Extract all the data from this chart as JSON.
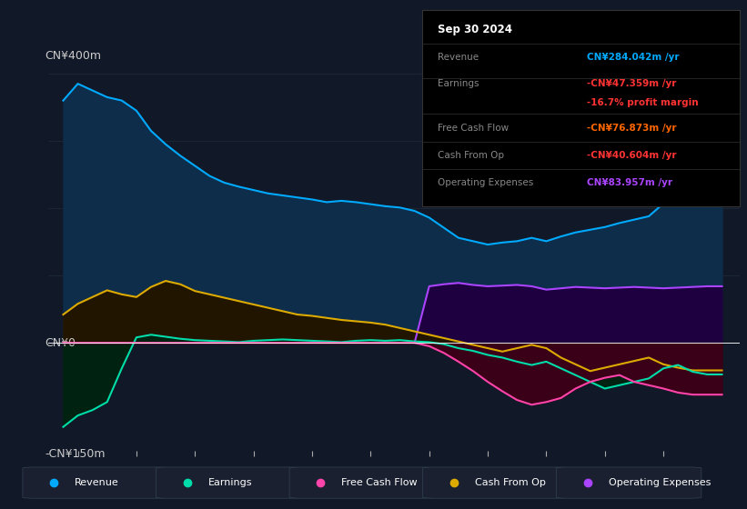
{
  "bg_color": "#111827",
  "plot_bg_color": "#111827",
  "ylim": [
    -160,
    430
  ],
  "xlim_start": 2013.5,
  "xlim_end": 2025.3,
  "xticks": [
    2014,
    2015,
    2016,
    2017,
    2018,
    2019,
    2020,
    2021,
    2022,
    2023,
    2024
  ],
  "ylabel_top": "CN¥400m",
  "ylabel_zero": "CN¥0",
  "ylabel_bottom": "-CN¥150m",
  "info_box": {
    "title": "Sep 30 2024",
    "rows": [
      {
        "label": "Revenue",
        "value": "CN¥284.042m /yr",
        "value_color": "#00aaff",
        "label_color": "#888888"
      },
      {
        "label": "Earnings",
        "value": "-CN¥47.359m /yr",
        "value_color": "#ff3333",
        "label_color": "#888888"
      },
      {
        "label": "",
        "value": "-16.7% profit margin",
        "value_color": "#ff3333",
        "label_color": "#888888"
      },
      {
        "label": "Free Cash Flow",
        "value": "-CN¥76.873m /yr",
        "value_color": "#ff6600",
        "label_color": "#888888"
      },
      {
        "label": "Cash From Op",
        "value": "-CN¥40.604m /yr",
        "value_color": "#ff3333",
        "label_color": "#888888"
      },
      {
        "label": "Operating Expenses",
        "value": "CN¥83.957m /yr",
        "value_color": "#aa44ff",
        "label_color": "#888888"
      }
    ]
  },
  "legend": [
    {
      "label": "Revenue",
      "color": "#00aaff"
    },
    {
      "label": "Earnings",
      "color": "#00ddaa"
    },
    {
      "label": "Free Cash Flow",
      "color": "#ff44aa"
    },
    {
      "label": "Cash From Op",
      "color": "#ddaa00"
    },
    {
      "label": "Operating Expenses",
      "color": "#aa44ff"
    }
  ],
  "revenue": {
    "line_color": "#00aaff",
    "fill_color": "#0d2d4a",
    "x": [
      2013.75,
      2014.0,
      2014.25,
      2014.5,
      2014.75,
      2015.0,
      2015.25,
      2015.5,
      2015.75,
      2016.0,
      2016.25,
      2016.5,
      2016.75,
      2017.0,
      2017.25,
      2017.5,
      2017.75,
      2018.0,
      2018.25,
      2018.5,
      2018.75,
      2019.0,
      2019.25,
      2019.5,
      2019.75,
      2020.0,
      2020.25,
      2020.5,
      2020.75,
      2021.0,
      2021.25,
      2021.5,
      2021.75,
      2022.0,
      2022.25,
      2022.5,
      2022.75,
      2023.0,
      2023.25,
      2023.5,
      2023.75,
      2024.0,
      2024.25,
      2024.5,
      2024.75,
      2025.0
    ],
    "y": [
      360,
      385,
      375,
      365,
      360,
      345,
      315,
      295,
      278,
      263,
      248,
      238,
      232,
      227,
      222,
      219,
      216,
      213,
      209,
      211,
      209,
      206,
      203,
      201,
      196,
      186,
      171,
      156,
      151,
      146,
      149,
      151,
      156,
      151,
      158,
      164,
      168,
      172,
      178,
      183,
      188,
      207,
      228,
      268,
      284,
      284
    ]
  },
  "earnings": {
    "line_color": "#00ddaa",
    "fill_color": "#002211",
    "x": [
      2013.75,
      2014.0,
      2014.25,
      2014.5,
      2014.75,
      2015.0,
      2015.25,
      2015.5,
      2015.75,
      2016.0,
      2016.25,
      2016.5,
      2016.75,
      2017.0,
      2017.25,
      2017.5,
      2017.75,
      2018.0,
      2018.25,
      2018.5,
      2018.75,
      2019.0,
      2019.25,
      2019.5,
      2019.75,
      2020.0,
      2020.25,
      2020.5,
      2020.75,
      2021.0,
      2021.25,
      2021.5,
      2021.75,
      2022.0,
      2022.25,
      2022.5,
      2022.75,
      2023.0,
      2023.25,
      2023.5,
      2023.75,
      2024.0,
      2024.25,
      2024.5,
      2024.75,
      2025.0
    ],
    "y": [
      -125,
      -108,
      -100,
      -88,
      -38,
      8,
      12,
      9,
      6,
      4,
      3,
      2,
      1,
      3,
      4,
      5,
      4,
      3,
      2,
      1,
      3,
      4,
      3,
      4,
      2,
      1,
      -2,
      -8,
      -12,
      -18,
      -22,
      -28,
      -33,
      -28,
      -38,
      -48,
      -58,
      -68,
      -63,
      -58,
      -53,
      -38,
      -33,
      -43,
      -47,
      -47
    ]
  },
  "free_cash_flow": {
    "line_color": "#ff44aa",
    "fill_color": "#3a0018",
    "x": [
      2013.75,
      2014.0,
      2014.25,
      2014.5,
      2014.75,
      2015.0,
      2015.25,
      2015.5,
      2015.75,
      2016.0,
      2016.25,
      2016.5,
      2016.75,
      2017.0,
      2017.25,
      2017.5,
      2017.75,
      2018.0,
      2018.25,
      2018.5,
      2018.75,
      2019.0,
      2019.25,
      2019.5,
      2019.75,
      2020.0,
      2020.25,
      2020.5,
      2020.75,
      2021.0,
      2021.25,
      2021.5,
      2021.75,
      2022.0,
      2022.25,
      2022.5,
      2022.75,
      2023.0,
      2023.25,
      2023.5,
      2023.75,
      2024.0,
      2024.25,
      2024.5,
      2024.75,
      2025.0
    ],
    "y": [
      0,
      0,
      0,
      0,
      0,
      0,
      0,
      0,
      0,
      0,
      0,
      0,
      0,
      0,
      0,
      0,
      0,
      0,
      0,
      0,
      0,
      0,
      0,
      0,
      0,
      -5,
      -15,
      -28,
      -42,
      -58,
      -72,
      -85,
      -92,
      -88,
      -82,
      -68,
      -58,
      -52,
      -48,
      -58,
      -63,
      -68,
      -74,
      -77,
      -77,
      -77
    ]
  },
  "cash_from_op": {
    "line_color": "#ddaa00",
    "fill_color": "#221500",
    "x": [
      2013.75,
      2014.0,
      2014.25,
      2014.5,
      2014.75,
      2015.0,
      2015.25,
      2015.5,
      2015.75,
      2016.0,
      2016.25,
      2016.5,
      2016.75,
      2017.0,
      2017.25,
      2017.5,
      2017.75,
      2018.0,
      2018.25,
      2018.5,
      2018.75,
      2019.0,
      2019.25,
      2019.5,
      2019.75,
      2020.0,
      2020.25,
      2020.5,
      2020.75,
      2021.0,
      2021.25,
      2021.5,
      2021.75,
      2022.0,
      2022.25,
      2022.5,
      2022.75,
      2023.0,
      2023.25,
      2023.5,
      2023.75,
      2024.0,
      2024.25,
      2024.5,
      2024.75,
      2025.0
    ],
    "y": [
      42,
      58,
      68,
      78,
      72,
      68,
      83,
      92,
      87,
      77,
      72,
      67,
      62,
      57,
      52,
      47,
      42,
      40,
      37,
      34,
      32,
      30,
      27,
      22,
      17,
      12,
      7,
      2,
      -3,
      -8,
      -13,
      -8,
      -3,
      -8,
      -22,
      -32,
      -42,
      -37,
      -32,
      -27,
      -22,
      -32,
      -37,
      -41,
      -41,
      -41
    ]
  },
  "operating_expenses": {
    "line_color": "#aa44ff",
    "fill_color": "#1e0040",
    "x": [
      2019.75,
      2020.0,
      2020.25,
      2020.5,
      2020.75,
      2021.0,
      2021.25,
      2021.5,
      2021.75,
      2022.0,
      2022.25,
      2022.5,
      2022.75,
      2023.0,
      2023.25,
      2023.5,
      2023.75,
      2024.0,
      2024.25,
      2024.5,
      2024.75,
      2025.0
    ],
    "y": [
      0,
      84,
      87,
      89,
      86,
      84,
      85,
      86,
      84,
      79,
      81,
      83,
      82,
      81,
      82,
      83,
      82,
      81,
      82,
      83,
      84,
      84
    ]
  }
}
